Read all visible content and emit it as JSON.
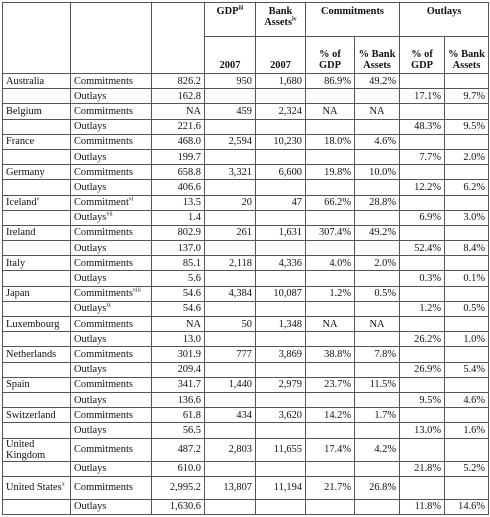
{
  "headers": {
    "gdp": "GDP",
    "gdp_note": "iii",
    "bank_assets": "Bank Assets",
    "bank_assets_note": "iv",
    "commitments": "Commitments",
    "outlays": "Outlays",
    "year1": "2007",
    "year2": "2007",
    "pct_gdp": "% of GDP",
    "pct_bank_assets": "% Bank Assets",
    "pct_gdp_2": "% of GDP",
    "pct_bank_assets_2": "% Bank Assets"
  },
  "rows": [
    {
      "country": "Australia",
      "note": "",
      "type": "Commitments",
      "type_note": "",
      "value": "826.2",
      "gdp": "950",
      "assets": "1,680",
      "c_gdp": "86.9%",
      "c_assets": "49.2%",
      "o_gdp": "",
      "o_assets": ""
    },
    {
      "country": "",
      "note": "",
      "type": "Outlays",
      "type_note": "",
      "value": "162.8",
      "gdp": "",
      "assets": "",
      "c_gdp": "",
      "c_assets": "",
      "o_gdp": "17.1%",
      "o_assets": "9.7%"
    },
    {
      "country": "Belgium",
      "note": "",
      "type": "Commitments",
      "type_note": "",
      "value": "NA",
      "gdp": "459",
      "assets": "2,324",
      "c_gdp": "NA",
      "c_assets": "NA",
      "o_gdp": "",
      "o_assets": ""
    },
    {
      "country": "",
      "note": "",
      "type": "Outlays",
      "type_note": "",
      "value": "221.6",
      "gdp": "",
      "assets": "",
      "c_gdp": "",
      "c_assets": "",
      "o_gdp": "48.3%",
      "o_assets": "9.5%"
    },
    {
      "country": "France",
      "note": "",
      "type": "Commitments",
      "type_note": "",
      "value": "468.0",
      "gdp": "2,594",
      "assets": "10,230",
      "c_gdp": "18.0%",
      "c_assets": "4.6%",
      "o_gdp": "",
      "o_assets": ""
    },
    {
      "country": "",
      "note": "",
      "type": "Outlays",
      "type_note": "",
      "value": "199.7",
      "gdp": "",
      "assets": "",
      "c_gdp": "",
      "c_assets": "",
      "o_gdp": "7.7%",
      "o_assets": "2.0%"
    },
    {
      "country": "Germany",
      "note": "",
      "type": "Commitments",
      "type_note": "",
      "value": "658.8",
      "gdp": "3,321",
      "assets": "6,600",
      "c_gdp": "19.8%",
      "c_assets": "10.0%",
      "o_gdp": "",
      "o_assets": ""
    },
    {
      "country": "",
      "note": "",
      "type": "Outlays",
      "type_note": "",
      "value": "406.6",
      "gdp": "",
      "assets": "",
      "c_gdp": "",
      "c_assets": "",
      "o_gdp": "12.2%",
      "o_assets": "6.2%"
    },
    {
      "country": "Iceland",
      "note": "v",
      "type": "Commitment",
      "type_note": "vi",
      "value": "13.5",
      "gdp": "20",
      "assets": "47",
      "c_gdp": "66.2%",
      "c_assets": "28.8%",
      "o_gdp": "",
      "o_assets": ""
    },
    {
      "country": "",
      "note": "",
      "type": "Outlays",
      "type_note": "vii",
      "value": "1.4",
      "gdp": "",
      "assets": "",
      "c_gdp": "",
      "c_assets": "",
      "o_gdp": "6.9%",
      "o_assets": "3.0%"
    },
    {
      "country": "Ireland",
      "note": "",
      "type": "Commitments",
      "type_note": "",
      "value": "802.9",
      "gdp": "261",
      "assets": "1,631",
      "c_gdp": "307.4%",
      "c_assets": "49.2%",
      "o_gdp": "",
      "o_assets": ""
    },
    {
      "country": "",
      "note": "",
      "type": "Outlays",
      "type_note": "",
      "value": "137.0",
      "gdp": "",
      "assets": "",
      "c_gdp": "",
      "c_assets": "",
      "o_gdp": "52.4%",
      "o_assets": "8.4%"
    },
    {
      "country": "Italy",
      "note": "",
      "type": "Commitments",
      "type_note": "",
      "value": "85.1",
      "gdp": "2,118",
      "assets": "4,336",
      "c_gdp": "4.0%",
      "c_assets": "2.0%",
      "o_gdp": "",
      "o_assets": ""
    },
    {
      "country": "",
      "note": "",
      "type": "Outlays",
      "type_note": "",
      "value": "5.6",
      "gdp": "",
      "assets": "",
      "c_gdp": "",
      "c_assets": "",
      "o_gdp": "0.3%",
      "o_assets": "0.1%"
    },
    {
      "country": "Japan",
      "note": "",
      "type": "Commitments",
      "type_note": "viii",
      "value": "54.6",
      "gdp": "4,384",
      "assets": "10,087",
      "c_gdp": "1.2%",
      "c_assets": "0.5%",
      "o_gdp": "",
      "o_assets": ""
    },
    {
      "country": "",
      "note": "",
      "type": "Outlays",
      "type_note": "ix",
      "value": "54.6",
      "gdp": "",
      "assets": "",
      "c_gdp": "",
      "c_assets": "",
      "o_gdp": "1.2%",
      "o_assets": "0.5%"
    },
    {
      "country": "Luxembourg",
      "note": "",
      "type": "Commitments",
      "type_note": "",
      "value": "NA",
      "gdp": "50",
      "assets": "1,348",
      "c_gdp": "NA",
      "c_assets": "NA",
      "o_gdp": "",
      "o_assets": ""
    },
    {
      "country": "",
      "note": "",
      "type": "Outlays",
      "type_note": "",
      "value": "13.0",
      "gdp": "",
      "assets": "",
      "c_gdp": "",
      "c_assets": "",
      "o_gdp": "26.2%",
      "o_assets": "1.0%"
    },
    {
      "country": "Netherlands",
      "note": "",
      "type": "Commitments",
      "type_note": "",
      "value": "301.9",
      "gdp": "777",
      "assets": "3,869",
      "c_gdp": "38.8%",
      "c_assets": "7.8%",
      "o_gdp": "",
      "o_assets": ""
    },
    {
      "country": "",
      "note": "",
      "type": "Outlays",
      "type_note": "",
      "value": "209.4",
      "gdp": "",
      "assets": "",
      "c_gdp": "",
      "c_assets": "",
      "o_gdp": "26.9%",
      "o_assets": "5.4%"
    },
    {
      "country": "Spain",
      "note": "",
      "type": "Commitments",
      "type_note": "",
      "value": "341.7",
      "gdp": "1,440",
      "assets": "2,979",
      "c_gdp": "23.7%",
      "c_assets": "11.5%",
      "o_gdp": "",
      "o_assets": ""
    },
    {
      "country": "",
      "note": "",
      "type": "Outlays",
      "type_note": "",
      "value": "136.6",
      "gdp": "",
      "assets": "",
      "c_gdp": "",
      "c_assets": "",
      "o_gdp": "9.5%",
      "o_assets": "4.6%"
    },
    {
      "country": "Switzerland",
      "note": "",
      "type": "Commitments",
      "type_note": "",
      "value": "61.8",
      "gdp": "434",
      "assets": "3,620",
      "c_gdp": "14.2%",
      "c_assets": "1.7%",
      "o_gdp": "",
      "o_assets": ""
    },
    {
      "country": "",
      "note": "",
      "type": "Outlays",
      "type_note": "",
      "value": "56.5",
      "gdp": "",
      "assets": "",
      "c_gdp": "",
      "c_assets": "",
      "o_gdp": "13.0%",
      "o_assets": "1.6%"
    },
    {
      "country": "United Kingdom",
      "note": "",
      "type": "Commitments",
      "type_note": "",
      "value": "487.2",
      "gdp": "2,803",
      "assets": "11,655",
      "c_gdp": "17.4%",
      "c_assets": "4.2%",
      "o_gdp": "",
      "o_assets": "",
      "tall": true
    },
    {
      "country": "",
      "note": "",
      "type": "Outlays",
      "type_note": "",
      "value": "610.0",
      "gdp": "",
      "assets": "",
      "c_gdp": "",
      "c_assets": "",
      "o_gdp": "21.8%",
      "o_assets": "5.2%"
    },
    {
      "country": "United States",
      "note": "x",
      "type": "Commitments",
      "type_note": "",
      "value": "2,995.2",
      "gdp": "13,807",
      "assets": "11,194",
      "c_gdp": "21.7%",
      "c_assets": "26.8%",
      "o_gdp": "",
      "o_assets": "",
      "tall": true
    },
    {
      "country": "",
      "note": "",
      "type": "Outlays",
      "type_note": "",
      "value": "1,630.6",
      "gdp": "",
      "assets": "",
      "c_gdp": "",
      "c_assets": "",
      "o_gdp": "11.8%",
      "o_assets": "14.6%"
    }
  ]
}
